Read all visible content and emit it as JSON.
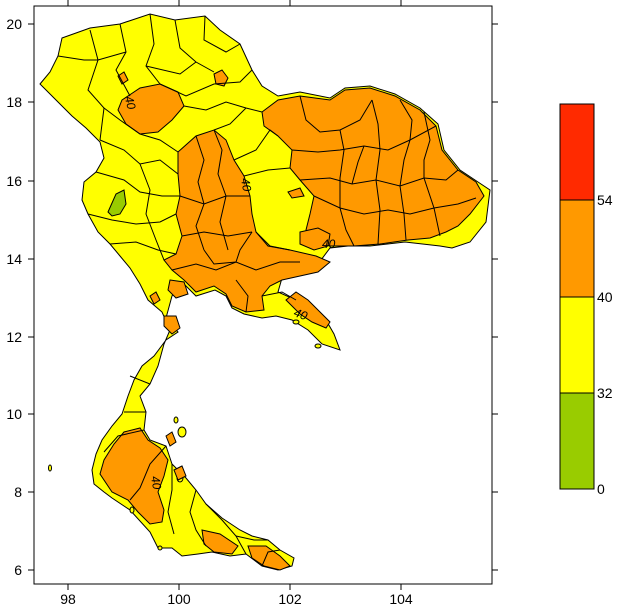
{
  "map": {
    "x_ticks": [
      "98",
      "100",
      "102",
      "104"
    ],
    "y_ticks": [
      "20",
      "18",
      "16",
      "14",
      "12",
      "10",
      "8",
      "6"
    ],
    "contour_labels": [
      "40",
      "40",
      "40",
      "40",
      "40"
    ]
  },
  "legend": {
    "bins": [
      {
        "color": "#ff2a00",
        "from": 54,
        "to": null
      },
      {
        "color": "#ff9900",
        "from": 40,
        "to": 54
      },
      {
        "color": "#ffff00",
        "from": 32,
        "to": 40
      },
      {
        "color": "#99cc00",
        "from": 0,
        "to": 32
      }
    ],
    "labels": [
      "54",
      "40",
      "32",
      "0"
    ]
  },
  "colors": {
    "land_yellow": "#ffff00",
    "land_orange": "#ff9900",
    "land_green": "#99cc00",
    "land_red": "#ff2a00"
  }
}
